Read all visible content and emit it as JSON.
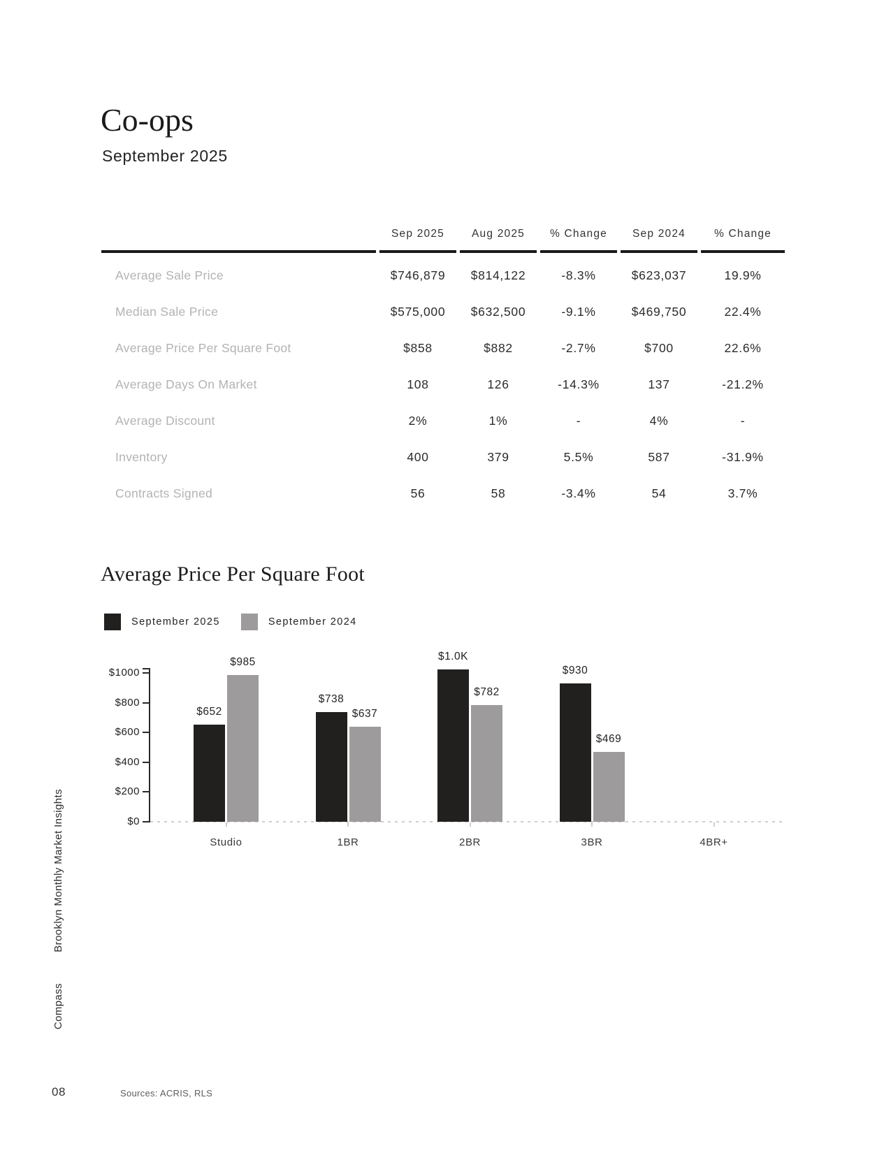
{
  "page": {
    "title": "Co-ops",
    "subtitle": "September 2025",
    "page_number": "08",
    "sources": "Sources: ACRIS, RLS",
    "sidebar_report_name": "Brooklyn Monthly Market Insights",
    "sidebar_brand": "Compass"
  },
  "table": {
    "columns": [
      "Sep 2025",
      "Aug 2025",
      "% Change",
      "Sep 2024",
      "% Change"
    ],
    "rows": [
      {
        "label": "Average Sale Price",
        "values": [
          "$746,879",
          "$814,122",
          "-8.3%",
          "$623,037",
          "19.9%"
        ]
      },
      {
        "label": "Median Sale Price",
        "values": [
          "$575,000",
          "$632,500",
          "-9.1%",
          "$469,750",
          "22.4%"
        ]
      },
      {
        "label": "Average Price Per Square Foot",
        "values": [
          "$858",
          "$882",
          "-2.7%",
          "$700",
          "22.6%"
        ]
      },
      {
        "label": "Average Days On Market",
        "values": [
          "108",
          "126",
          "-14.3%",
          "137",
          "-21.2%"
        ]
      },
      {
        "label": "Average Discount",
        "values": [
          "2%",
          "1%",
          "-",
          "4%",
          "-"
        ]
      },
      {
        "label": "Inventory",
        "values": [
          "400",
          "379",
          "5.5%",
          "587",
          "-31.9%"
        ]
      },
      {
        "label": "Contracts Signed",
        "values": [
          "56",
          "58",
          "-3.4%",
          "54",
          "3.7%"
        ]
      }
    ]
  },
  "chart_data": {
    "type": "bar",
    "title": "Average Price Per Square Foot",
    "categories": [
      "Studio",
      "1BR",
      "2BR",
      "3BR",
      "4BR+"
    ],
    "series": [
      {
        "name": "September 2025",
        "color": "#221f1f",
        "values": [
          652,
          738,
          1023,
          930,
          null
        ],
        "labels": [
          "$652",
          "$738",
          "$1.0K",
          "$930",
          ""
        ]
      },
      {
        "name": "September 2024",
        "color": "#9d9b9b",
        "values": [
          985,
          637,
          782,
          469,
          null
        ],
        "labels": [
          "$985",
          "$637",
          "$782",
          "$469",
          ""
        ]
      }
    ],
    "yticks": [
      0,
      200,
      400,
      600,
      800,
      1000
    ],
    "ytick_labels": [
      "$0",
      "$200",
      "$400",
      "$600",
      "$800",
      "$1000"
    ],
    "ylim": [
      0,
      1000
    ],
    "xlabel": "",
    "ylabel": "",
    "grid": false,
    "legend_position": "top-left"
  }
}
